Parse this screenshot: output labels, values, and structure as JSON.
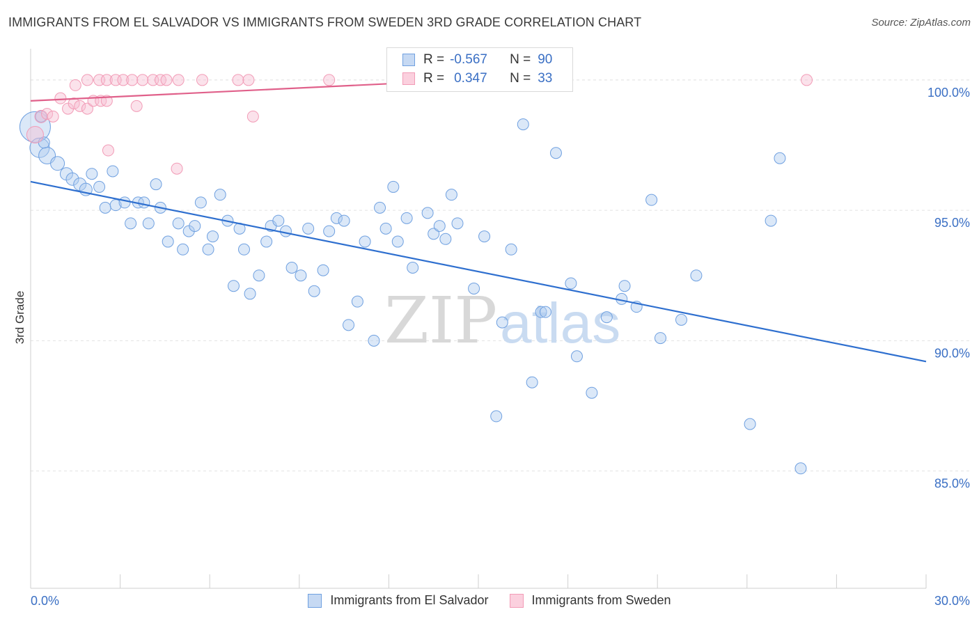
{
  "title": "IMMIGRANTS FROM EL SALVADOR VS IMMIGRANTS FROM SWEDEN 3RD GRADE CORRELATION CHART",
  "source": "Source: ZipAtlas.com",
  "watermark": {
    "zip": "ZIP",
    "atlas": "atlas"
  },
  "colors": {
    "blue": "#6fa0e0",
    "blue_line": "#2e6fcf",
    "pink": "#f29bb6",
    "pink_line": "#e0608a",
    "label": "#3a6fc4"
  },
  "legend": {
    "rows": [
      {
        "r_label": "R =",
        "r_value": "-0.567",
        "n_label": "N =",
        "n_value": "90"
      },
      {
        "r_label": "R =",
        "r_value": "0.347",
        "n_label": "N =",
        "n_value": "33"
      }
    ]
  },
  "bottom_legend": [
    "Immigrants from El Salvador",
    "Immigrants from Sweden"
  ],
  "chart_data": {
    "type": "scatter",
    "title": "IMMIGRANTS FROM EL SALVADOR VS IMMIGRANTS FROM SWEDEN 3RD GRADE CORRELATION CHART",
    "ylabel": "3rd Grade",
    "xlabel": "",
    "xlim": [
      0,
      30
    ],
    "ylim": [
      80.5,
      101.2
    ],
    "x_tick_labels": [
      "0.0%",
      "30.0%"
    ],
    "y_tick_labels": [
      "100.0%",
      "95.0%",
      "90.0%",
      "85.0%"
    ],
    "y_ticks": [
      100,
      95,
      90,
      85
    ],
    "grid": true,
    "legend_position": "top-center",
    "series": [
      {
        "name": "Immigrants from El Salvador",
        "color": "#6fa0e0",
        "trend": {
          "x": [
            0,
            30
          ],
          "y": [
            96.1,
            89.2
          ]
        },
        "points": [
          [
            0.15,
            98.2,
            22
          ],
          [
            0.3,
            97.4,
            14
          ],
          [
            0.55,
            97.1,
            12
          ],
          [
            0.9,
            96.8,
            10
          ],
          [
            1.2,
            96.4,
            9
          ],
          [
            1.4,
            96.2,
            9
          ],
          [
            1.65,
            96.0,
            9
          ],
          [
            1.85,
            95.8,
            9
          ],
          [
            2.05,
            96.4,
            8
          ],
          [
            2.3,
            95.9,
            8
          ],
          [
            2.5,
            95.1,
            8
          ],
          [
            2.75,
            96.5,
            8
          ],
          [
            2.85,
            95.2,
            8
          ],
          [
            3.15,
            95.3,
            8
          ],
          [
            3.35,
            94.5,
            8
          ],
          [
            3.6,
            95.3,
            8
          ],
          [
            3.8,
            95.3,
            8
          ],
          [
            3.95,
            94.5,
            8
          ],
          [
            4.2,
            96.0,
            8
          ],
          [
            4.35,
            95.1,
            8
          ],
          [
            4.6,
            93.8,
            8
          ],
          [
            4.95,
            94.5,
            8
          ],
          [
            5.1,
            93.5,
            8
          ],
          [
            5.3,
            94.2,
            8
          ],
          [
            5.5,
            94.4,
            8
          ],
          [
            5.7,
            95.3,
            8
          ],
          [
            5.95,
            93.5,
            8
          ],
          [
            6.1,
            94.0,
            8
          ],
          [
            6.35,
            95.6,
            8
          ],
          [
            6.6,
            94.6,
            8
          ],
          [
            6.8,
            92.1,
            8
          ],
          [
            7.0,
            94.3,
            8
          ],
          [
            7.15,
            93.5,
            8
          ],
          [
            7.35,
            91.8,
            8
          ],
          [
            7.65,
            92.5,
            8
          ],
          [
            7.9,
            93.8,
            8
          ],
          [
            8.05,
            94.4,
            8
          ],
          [
            8.3,
            94.6,
            8
          ],
          [
            8.55,
            94.2,
            8
          ],
          [
            8.75,
            92.8,
            8
          ],
          [
            9.05,
            92.5,
            8
          ],
          [
            9.3,
            94.3,
            8
          ],
          [
            9.5,
            91.9,
            8
          ],
          [
            9.8,
            92.7,
            8
          ],
          [
            10.0,
            94.2,
            8
          ],
          [
            10.25,
            94.7,
            8
          ],
          [
            10.5,
            94.6,
            8
          ],
          [
            10.65,
            90.6,
            8
          ],
          [
            10.95,
            91.5,
            8
          ],
          [
            11.2,
            93.8,
            8
          ],
          [
            11.5,
            90.0,
            8
          ],
          [
            11.7,
            95.1,
            8
          ],
          [
            11.9,
            94.3,
            8
          ],
          [
            12.15,
            95.9,
            8
          ],
          [
            12.3,
            93.8,
            8
          ],
          [
            12.6,
            94.7,
            8
          ],
          [
            12.8,
            92.8,
            8
          ],
          [
            13.3,
            94.9,
            8
          ],
          [
            13.5,
            94.1,
            8
          ],
          [
            13.7,
            94.4,
            8
          ],
          [
            13.9,
            93.9,
            8
          ],
          [
            14.1,
            95.6,
            8
          ],
          [
            14.3,
            94.5,
            8
          ],
          [
            14.85,
            92.0,
            8
          ],
          [
            15.2,
            94.0,
            8
          ],
          [
            15.6,
            87.1,
            8
          ],
          [
            15.8,
            90.7,
            8
          ],
          [
            16.1,
            93.5,
            8
          ],
          [
            16.5,
            98.3,
            8
          ],
          [
            16.8,
            88.4,
            8
          ],
          [
            17.1,
            91.1,
            8
          ],
          [
            17.25,
            91.1,
            8
          ],
          [
            17.6,
            97.2,
            8
          ],
          [
            18.1,
            92.2,
            8
          ],
          [
            18.3,
            89.4,
            8
          ],
          [
            18.8,
            88.0,
            8
          ],
          [
            19.3,
            90.9,
            8
          ],
          [
            19.8,
            91.6,
            8
          ],
          [
            19.9,
            92.1,
            8
          ],
          [
            20.3,
            91.3,
            8
          ],
          [
            20.8,
            95.4,
            8
          ],
          [
            21.1,
            90.1,
            8
          ],
          [
            21.8,
            90.8,
            8
          ],
          [
            22.3,
            92.5,
            8
          ],
          [
            24.1,
            86.8,
            8
          ],
          [
            24.8,
            94.6,
            8
          ],
          [
            25.1,
            97.0,
            8
          ],
          [
            25.8,
            85.1,
            8
          ],
          [
            0.35,
            98.6,
            8
          ],
          [
            0.45,
            97.6,
            8
          ]
        ]
      },
      {
        "name": "Immigrants from Sweden",
        "color": "#f29bb6",
        "trend": {
          "x": [
            0,
            14.6
          ],
          "y": [
            99.2,
            100.0
          ]
        },
        "points": [
          [
            0.15,
            97.9,
            12
          ],
          [
            0.35,
            98.6,
            9
          ],
          [
            0.55,
            98.7,
            8
          ],
          [
            0.75,
            98.6,
            8
          ],
          [
            1.0,
            99.3,
            8
          ],
          [
            1.25,
            98.9,
            8
          ],
          [
            1.45,
            99.1,
            8
          ],
          [
            1.65,
            99.0,
            8
          ],
          [
            1.9,
            98.9,
            8
          ],
          [
            2.1,
            99.2,
            8
          ],
          [
            2.35,
            99.2,
            8
          ],
          [
            2.55,
            99.2,
            8
          ],
          [
            1.5,
            99.8,
            8
          ],
          [
            1.9,
            100.0,
            8
          ],
          [
            2.3,
            100.0,
            8
          ],
          [
            2.55,
            100.0,
            8
          ],
          [
            2.85,
            100.0,
            8
          ],
          [
            3.1,
            100.0,
            8
          ],
          [
            3.4,
            100.0,
            8
          ],
          [
            3.75,
            100.0,
            8
          ],
          [
            3.55,
            99.0,
            8
          ],
          [
            4.1,
            100.0,
            8
          ],
          [
            4.35,
            100.0,
            8
          ],
          [
            4.55,
            100.0,
            8
          ],
          [
            4.95,
            100.0,
            8
          ],
          [
            5.75,
            100.0,
            8
          ],
          [
            6.95,
            100.0,
            8
          ],
          [
            7.3,
            100.0,
            8
          ],
          [
            7.45,
            98.6,
            8
          ],
          [
            10.0,
            100.0,
            8
          ],
          [
            4.9,
            96.6,
            8
          ],
          [
            2.6,
            97.3,
            8
          ],
          [
            26.0,
            100.0,
            8
          ]
        ]
      }
    ]
  }
}
